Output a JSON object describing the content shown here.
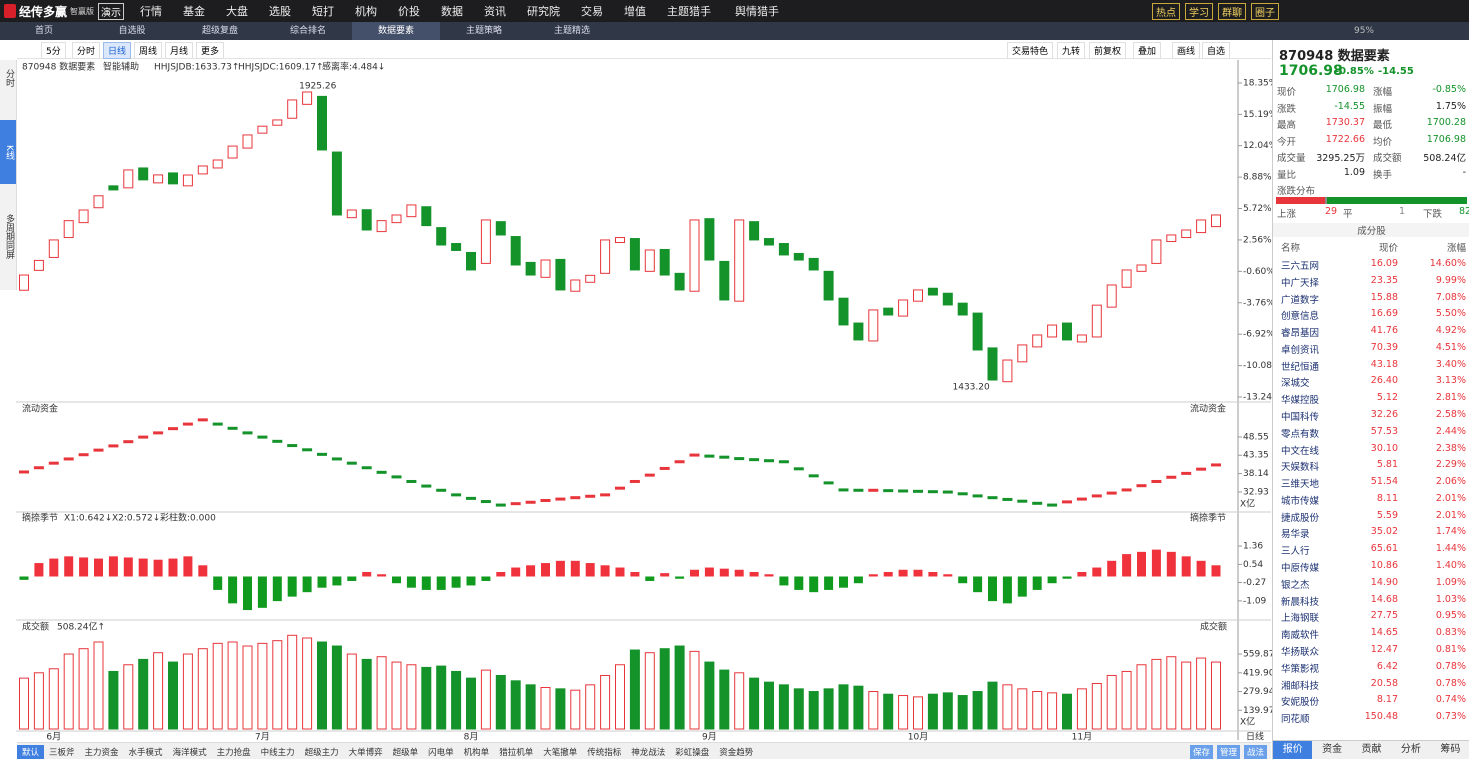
{
  "menu": {
    "logo": "经传多赢",
    "edition": "智赢版",
    "demo": "演示",
    "items": [
      "行情",
      "基金",
      "大盘",
      "选股",
      "短打",
      "机构",
      "价投",
      "数据",
      "资讯",
      "研究院",
      "交易",
      "增值",
      "主题猎手",
      "舆情猎手"
    ],
    "right": [
      "热点",
      "学习",
      "群聊",
      "圈子"
    ]
  },
  "tabs": {
    "items": [
      "首页",
      "自选股",
      "超级复盘",
      "综合排名",
      "数据要素",
      "主题策略",
      "主题精选"
    ],
    "zoom": "95%"
  },
  "toolbar": {
    "periods": [
      "5分",
      "分时",
      "日线",
      "周线",
      "月线",
      "更多"
    ],
    "tools": [
      "交易特色",
      "九转",
      "前复权",
      "叠加",
      "画线",
      "自选"
    ]
  },
  "sidebar": [
    "分时",
    "K线",
    "多周期同屏"
  ],
  "chart_data": [
    {
      "type": "candlestick",
      "title": "870948 数据要素",
      "indicators": [
        "智能辅助",
        "HHJSJDB:1633.73↑",
        "HHJSJDC:1609.17↑",
        "感离率:4.484↓"
      ],
      "high_label": "1925.26",
      "low_label": "1433.20",
      "up_color": "#e8353b",
      "down_color": "#14932b",
      "open": [
        -2.5,
        -0.5,
        0.8,
        2.8,
        4.3,
        5.8,
        8.0,
        7.8,
        9.8,
        8.3,
        9.3,
        8.0,
        9.2,
        9.8,
        10.8,
        11.8,
        13.3,
        14.1,
        14.8,
        16.2,
        17.0,
        11.4,
        4.8,
        5.6,
        3.4,
        4.3,
        4.9,
        5.9,
        3.8,
        2.2,
        1.3,
        0.2,
        4.4,
        2.9,
        0.3,
        -1.2,
        0.6,
        -2.6,
        -1.7,
        -0.8,
        2.3,
        2.7,
        -0.6,
        1.6,
        -0.8,
        -2.6,
        4.7,
        0.4,
        -3.6,
        4.4,
        2.7,
        2.2,
        1.2,
        0.7,
        -0.6,
        -3.3,
        -5.8,
        -7.6,
        -4.3,
        -5.1,
        -3.6,
        -2.3,
        -2.8,
        -3.8,
        -4.8,
        -8.3,
        -11.7,
        -9.7,
        -8.2,
        -7.2,
        -5.8,
        -7.7,
        -7.2,
        -4.2,
        -2.2,
        -0.6,
        0.2,
        2.4,
        2.8,
        3.3,
        3.9
      ],
      "close": [
        -0.97,
        0.5,
        2.56,
        4.5,
        5.57,
        7.0,
        7.59,
        9.6,
        8.6,
        9.1,
        8.2,
        9.09,
        10.0,
        10.6,
        12.0,
        13.12,
        14.0,
        14.63,
        16.64,
        17.44,
        11.61,
        5.07,
        5.57,
        3.56,
        4.5,
        5.07,
        6.08,
        4.0,
        2.05,
        1.5,
        -0.46,
        4.57,
        3.06,
        0.04,
        -0.97,
        0.54,
        -2.47,
        -1.47,
        -1.0,
        2.56,
        2.8,
        -0.46,
        1.55,
        -0.97,
        -2.47,
        4.57,
        0.54,
        -3.48,
        4.57,
        2.56,
        2.05,
        1.05,
        0.54,
        -0.46,
        -3.48,
        -5.99,
        -7.5,
        -4.48,
        -4.99,
        -3.48,
        -2.47,
        -2.98,
        -3.98,
        -4.99,
        -8.51,
        -11.53,
        -9.52,
        -8.0,
        -7.0,
        -6.0,
        -7.5,
        -7.0,
        -4.0,
        -1.97,
        -0.46,
        0.04,
        2.56,
        3.06,
        3.56,
        4.57,
        5.07
      ],
      "ylim": [
        -13.54,
        19.15
      ],
      "yticks": [
        {
          "value": 18.35,
          "label": "18.35%"
        },
        {
          "value": 15.19,
          "label": "15.19%"
        },
        {
          "value": 12.04,
          "label": "12.04%"
        },
        {
          "value": 8.88,
          "label": "8.88%"
        },
        {
          "value": 5.72,
          "label": "5.72%"
        },
        {
          "value": 2.56,
          "label": "2.56%"
        },
        {
          "value": -0.6,
          "label": "-0.60%"
        },
        {
          "value": -3.76,
          "label": "-3.76%"
        },
        {
          "value": -6.92,
          "label": "-6.92%"
        },
        {
          "value": -10.08,
          "label": "-10.08%"
        },
        {
          "value": -13.24,
          "label": "-13.24%"
        }
      ]
    },
    {
      "type": "line",
      "title": "流动资金",
      "unit": "X亿",
      "up_color": "#e8353b",
      "down_color": "#14932b",
      "values": [
        38.6,
        39.8,
        41.1,
        42.3,
        43.5,
        44.8,
        46.0,
        47.2,
        48.5,
        49.7,
        50.9,
        52.2,
        53.4,
        52.2,
        51.0,
        49.7,
        48.5,
        47.3,
        46.1,
        44.9,
        43.6,
        42.3,
        41.1,
        39.8,
        38.5,
        37.2,
        35.9,
        34.6,
        33.4,
        32.1,
        31.1,
        30.2,
        29.2,
        29.6,
        30.0,
        30.5,
        30.9,
        31.3,
        31.7,
        32.1,
        34.0,
        35.9,
        37.7,
        39.6,
        41.5,
        43.4,
        43.1,
        42.8,
        42.4,
        42.1,
        41.8,
        41.5,
        39.5,
        37.5,
        35.5,
        33.5,
        33.4,
        33.4,
        33.3,
        33.2,
        33.1,
        33.0,
        32.9,
        32.4,
        31.8,
        31.3,
        30.8,
        30.3,
        29.7,
        29.2,
        30.1,
        30.9,
        31.8,
        32.6,
        33.5,
        34.7,
        35.9,
        37.1,
        38.2,
        39.4,
        40.6
      ],
      "ylim": [
        27.8,
        56.2
      ],
      "yticks": [
        48.55,
        43.35,
        38.14,
        32.93
      ]
    },
    {
      "type": "bar",
      "title": "摘捺季节",
      "indicators": [
        "X1:0.642↓",
        "X2:0.572↓",
        "彩柱数:0.000"
      ],
      "up_color": "#f0323c",
      "down_color": "#109b1e",
      "values": [
        -0.15,
        0.6,
        0.8,
        0.9,
        0.85,
        0.8,
        0.9,
        0.85,
        0.8,
        0.75,
        0.8,
        0.9,
        0.5,
        -0.6,
        -1.2,
        -1.5,
        -1.4,
        -1.1,
        -0.9,
        -0.7,
        -0.5,
        -0.4,
        -0.2,
        0.2,
        0.1,
        -0.3,
        -0.5,
        -0.6,
        -0.6,
        -0.5,
        -0.4,
        -0.2,
        0.2,
        0.4,
        0.5,
        0.6,
        0.7,
        0.7,
        0.6,
        0.5,
        0.4,
        0.2,
        -0.2,
        0.15,
        -0.1,
        0.3,
        0.4,
        0.35,
        0.3,
        0.2,
        0.1,
        -0.4,
        -0.6,
        -0.7,
        -0.6,
        -0.5,
        -0.3,
        0.1,
        0.2,
        0.3,
        0.3,
        0.2,
        0.1,
        -0.3,
        -0.7,
        -1.1,
        -1.2,
        -0.9,
        -0.6,
        -0.3,
        -0.1,
        0.2,
        0.4,
        0.7,
        1.0,
        1.1,
        1.2,
        1.1,
        0.9,
        0.7,
        0.5
      ],
      "ylim": [
        -1.72,
        2.3
      ],
      "yticks": [
        1.36,
        0.54,
        -0.27,
        -1.09
      ]
    },
    {
      "type": "bar",
      "title": "成交额",
      "subtitle": "508.24亿↑",
      "unit": "X亿",
      "period": "日线",
      "categories": [
        null,
        null,
        "6月",
        null,
        null,
        null,
        null,
        null,
        null,
        null,
        null,
        null,
        null,
        null,
        null,
        null,
        "7月",
        null,
        null,
        null,
        null,
        null,
        null,
        null,
        null,
        null,
        null,
        null,
        null,
        null,
        "8月",
        null,
        null,
        null,
        null,
        null,
        null,
        null,
        null,
        null,
        null,
        null,
        null,
        null,
        null,
        null,
        "9月",
        null,
        null,
        null,
        null,
        null,
        null,
        null,
        null,
        null,
        null,
        null,
        null,
        null,
        "10月",
        null,
        null,
        null,
        null,
        null,
        null,
        null,
        null,
        null,
        null,
        "11月",
        null,
        null,
        null,
        null,
        null,
        null,
        null,
        null,
        null
      ],
      "values": [
        380,
        420,
        450,
        560,
        600,
        650,
        430,
        480,
        520,
        570,
        500,
        560,
        600,
        640,
        650,
        620,
        640,
        660,
        700,
        680,
        650,
        620,
        560,
        520,
        540,
        500,
        480,
        460,
        470,
        430,
        380,
        440,
        400,
        360,
        330,
        310,
        300,
        290,
        330,
        400,
        480,
        590,
        570,
        600,
        620,
        580,
        500,
        440,
        420,
        380,
        350,
        330,
        300,
        280,
        300,
        330,
        320,
        280,
        260,
        250,
        240,
        260,
        270,
        250,
        280,
        350,
        330,
        300,
        280,
        270,
        260,
        300,
        340,
        400,
        430,
        480,
        520,
        540,
        500,
        530,
        500
      ],
      "ylim": [
        0,
        777
      ],
      "yticks": [
        559.87,
        {
          "value": 419.9,
          "label": "419.90"
        },
        279.94,
        139.97
      ]
    }
  ],
  "bottom_tabs": {
    "items": [
      "默认",
      "三板斧",
      "主力资金",
      "水手模式",
      "海洋模式",
      "主力抢盘",
      "中线主力",
      "超级主力",
      "大单博弈",
      "超级单",
      "闪电单",
      "机构单",
      "猎拉机单",
      "大笔撤单",
      "传统指标",
      "神龙战法",
      "彩虹操盘",
      "资金趋势"
    ],
    "actions": [
      "保存",
      "管理",
      "战法"
    ]
  },
  "quote": {
    "title": "870948 数据要素",
    "price": "1706.98",
    "change_pct": "-0.85%",
    "change": "-14.55",
    "rows": [
      [
        {
          "label": "现价",
          "value": "1706.98",
          "color": "#14932b"
        },
        {
          "label": "涨幅",
          "value": "-0.85%",
          "color": "#14932b"
        }
      ],
      [
        {
          "label": "涨跌",
          "value": "-14.55",
          "color": "#14932b"
        },
        {
          "label": "振幅",
          "value": "1.75%",
          "color": "#222"
        }
      ],
      [
        {
          "label": "最高",
          "value": "1730.37",
          "color": "#e8353b"
        },
        {
          "label": "最低",
          "value": "1700.28",
          "color": "#14932b"
        }
      ],
      [
        {
          "label": "今开",
          "value": "1722.66",
          "color": "#e8353b"
        },
        {
          "label": "均价",
          "value": "1706.98",
          "color": "#14932b"
        }
      ],
      [
        {
          "label": "成交量",
          "value": "3295.25万",
          "color": "#222"
        },
        {
          "label": "成交额",
          "value": "508.24亿",
          "color": "#222"
        }
      ],
      [
        {
          "label": "量比",
          "value": "1.09",
          "color": "#222"
        },
        {
          "label": "换手",
          "value": "-",
          "color": "#222"
        }
      ]
    ],
    "distribution": {
      "title": "涨跌分布",
      "labels": [
        "上涨",
        "平",
        "下跌"
      ],
      "counts": [
        29,
        1,
        82
      ],
      "colors": [
        "#e8353b",
        "#888888",
        "#14932b"
      ]
    },
    "components": {
      "title": "成分股",
      "header": [
        "名称",
        "现价",
        "涨幅"
      ],
      "rows": [
        [
          "三六五网",
          "16.09",
          "14.60%"
        ],
        [
          "中广天择",
          "23.35",
          "9.99%"
        ],
        [
          "广道数字",
          "15.88",
          "7.08%"
        ],
        [
          "创意信息",
          "16.69",
          "5.50%"
        ],
        [
          "睿昂基因",
          "41.76",
          "4.92%"
        ],
        [
          "卓创资讯",
          "70.39",
          "4.51%"
        ],
        [
          "世纪恒通",
          "43.18",
          "3.40%"
        ],
        [
          "深城交",
          "26.40",
          "3.13%"
        ],
        [
          "华媒控股",
          "5.12",
          "2.81%"
        ],
        [
          "中国科传",
          "32.26",
          "2.58%"
        ],
        [
          "零点有数",
          "57.53",
          "2.44%"
        ],
        [
          "中文在线",
          "30.10",
          "2.38%"
        ],
        [
          "天娱数科",
          "5.81",
          "2.29%"
        ],
        [
          "三维天地",
          "51.54",
          "2.06%"
        ],
        [
          "城市传媒",
          "8.11",
          "2.01%"
        ],
        [
          "捷成股份",
          "5.59",
          "2.01%"
        ],
        [
          "易华录",
          "35.02",
          "1.74%"
        ],
        [
          "三人行",
          "65.61",
          "1.44%"
        ],
        [
          "中原传媒",
          "10.86",
          "1.40%"
        ],
        [
          "银之杰",
          "14.90",
          "1.09%"
        ],
        [
          "新晨科技",
          "14.68",
          "1.03%"
        ],
        [
          "上海钢联",
          "27.75",
          "0.95%"
        ],
        [
          "南威软件",
          "14.65",
          "0.83%"
        ],
        [
          "华扬联众",
          "12.47",
          "0.81%"
        ],
        [
          "华策影视",
          "6.42",
          "0.78%"
        ],
        [
          "湘邮科技",
          "20.58",
          "0.78%"
        ],
        [
          "安妮股份",
          "8.17",
          "0.74%"
        ],
        [
          "同花顺",
          "150.48",
          "0.73%"
        ]
      ]
    },
    "tabs": [
      "报价",
      "资金",
      "贡献",
      "分析",
      "筹码"
    ]
  }
}
